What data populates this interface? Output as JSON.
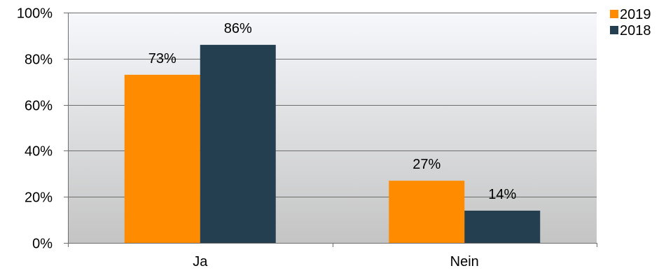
{
  "chart_data": {
    "type": "bar",
    "categories": [
      "Ja",
      "Nein"
    ],
    "series": [
      {
        "name": "2019",
        "values": [
          73,
          27
        ],
        "labels": [
          "73%",
          "27%"
        ],
        "color": "#FF8C00"
      },
      {
        "name": "2018",
        "values": [
          86,
          14
        ],
        "labels": [
          "86%",
          "14%"
        ],
        "color": "#243F50"
      }
    ],
    "ylim": [
      0,
      100
    ],
    "yticks": [
      0,
      20,
      40,
      60,
      80,
      100
    ],
    "ytick_labels": [
      "0%",
      "20%",
      "40%",
      "60%",
      "80%",
      "100%"
    ],
    "grid": true,
    "legend_position": "top-right",
    "background_gradient": [
      "#F6F8FC",
      "#C4C4C4"
    ]
  }
}
